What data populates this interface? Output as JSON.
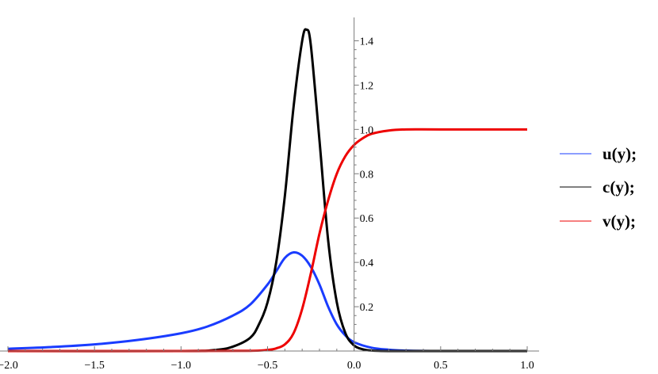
{
  "chart_data": {
    "type": "line",
    "title": "",
    "xlabel": "",
    "ylabel": "",
    "xlim": [
      -2.0,
      1.0
    ],
    "ylim": [
      0,
      1.5
    ],
    "x_ticks": [
      "-2.0",
      "-1.5",
      "-1.0",
      "-0.5",
      "0.0",
      "0.5",
      "1.0"
    ],
    "y_ticks": [
      "0.2",
      "0.4",
      "0.6",
      "0.8",
      "1.0",
      "1.2",
      "1.4"
    ],
    "grid": false,
    "legend_position": "right",
    "series": [
      {
        "name": "u(y);",
        "color": "#1a3cff",
        "x": [
          -2.0,
          -1.75,
          -1.5,
          -1.25,
          -1.0,
          -0.85,
          -0.7,
          -0.6,
          -0.5,
          -0.45,
          -0.4,
          -0.35,
          -0.3,
          -0.25,
          -0.2,
          -0.15,
          -0.1,
          -0.05,
          0.0,
          0.1,
          0.2,
          0.3,
          0.5,
          1.0
        ],
        "y": [
          0.01,
          0.018,
          0.03,
          0.05,
          0.08,
          0.11,
          0.16,
          0.21,
          0.3,
          0.36,
          0.42,
          0.445,
          0.43,
          0.38,
          0.3,
          0.2,
          0.12,
          0.07,
          0.04,
          0.015,
          0.006,
          0.002,
          0.0,
          0.0
        ]
      },
      {
        "name": "c(y);",
        "color": "#000000",
        "x": [
          -2.0,
          -1.0,
          -0.8,
          -0.7,
          -0.6,
          -0.55,
          -0.5,
          -0.45,
          -0.4,
          -0.35,
          -0.3,
          -0.275,
          -0.25,
          -0.2,
          -0.15,
          -0.1,
          -0.05,
          0.0,
          0.05,
          0.1,
          0.2,
          0.5,
          1.0
        ],
        "y": [
          0.0,
          0.0,
          0.005,
          0.02,
          0.06,
          0.12,
          0.22,
          0.4,
          0.7,
          1.1,
          1.4,
          1.45,
          1.38,
          0.95,
          0.5,
          0.22,
          0.08,
          0.025,
          0.008,
          0.002,
          0.0,
          0.0,
          0.0
        ]
      },
      {
        "name": "v(y);",
        "color": "#ee0000",
        "x": [
          -2.0,
          -1.0,
          -0.6,
          -0.5,
          -0.45,
          -0.4,
          -0.35,
          -0.3,
          -0.25,
          -0.2,
          -0.15,
          -0.1,
          -0.05,
          0.0,
          0.05,
          0.1,
          0.2,
          0.3,
          0.5,
          1.0
        ],
        "y": [
          0.0,
          0.0,
          0.001,
          0.005,
          0.012,
          0.03,
          0.08,
          0.19,
          0.35,
          0.53,
          0.68,
          0.8,
          0.88,
          0.93,
          0.96,
          0.98,
          0.995,
          1.0,
          1.0,
          1.0
        ]
      }
    ]
  }
}
